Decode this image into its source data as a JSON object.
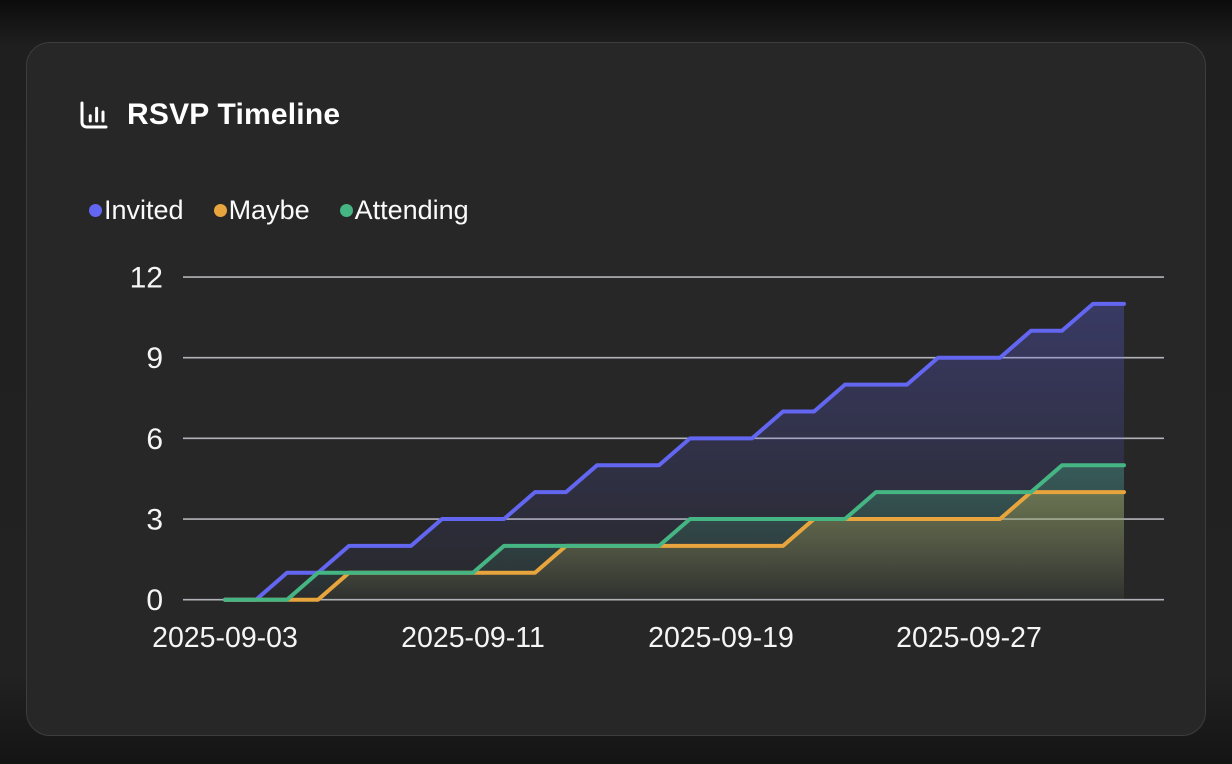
{
  "card": {
    "title": "RSVP Timeline",
    "title_icon": "bar-chart"
  },
  "chart_data": {
    "type": "line",
    "variant": "cumulative-daily-step-area",
    "title": "RSVP Timeline",
    "x": [
      "2025-09-03",
      "2025-09-04",
      "2025-09-05",
      "2025-09-06",
      "2025-09-07",
      "2025-09-08",
      "2025-09-09",
      "2025-09-10",
      "2025-09-11",
      "2025-09-12",
      "2025-09-13",
      "2025-09-14",
      "2025-09-15",
      "2025-09-16",
      "2025-09-17",
      "2025-09-18",
      "2025-09-19",
      "2025-09-20",
      "2025-09-21",
      "2025-09-22",
      "2025-09-23",
      "2025-09-24",
      "2025-09-25",
      "2025-09-26",
      "2025-09-27",
      "2025-09-28",
      "2025-09-29",
      "2025-09-30",
      "2025-10-01",
      "2025-10-02"
    ],
    "series": [
      {
        "name": "Invited",
        "color": "#6366f1",
        "values": [
          0,
          0,
          1,
          1,
          2,
          2,
          2,
          3,
          3,
          3,
          4,
          4,
          5,
          5,
          5,
          6,
          6,
          6,
          7,
          7,
          8,
          8,
          8,
          9,
          9,
          9,
          10,
          10,
          11,
          11
        ]
      },
      {
        "name": "Maybe",
        "color": "#e8a53d",
        "values": [
          0,
          0,
          0,
          0,
          1,
          1,
          1,
          1,
          1,
          1,
          1,
          2,
          2,
          2,
          2,
          2,
          2,
          2,
          2,
          3,
          3,
          3,
          3,
          3,
          3,
          3,
          4,
          4,
          4,
          4
        ]
      },
      {
        "name": "Attending",
        "color": "#45b683",
        "values": [
          0,
          0,
          0,
          1,
          1,
          1,
          1,
          1,
          1,
          2,
          2,
          2,
          2,
          2,
          2,
          3,
          3,
          3,
          3,
          3,
          3,
          4,
          4,
          4,
          4,
          4,
          4,
          5,
          5,
          5
        ]
      }
    ],
    "xlabel": "",
    "ylabel": "",
    "ylim": [
      0,
      12
    ],
    "yticks": [
      0,
      3,
      6,
      9,
      12
    ],
    "ytick_labels": [
      "0",
      "3",
      "6",
      "9",
      "12"
    ],
    "xticks": {
      "indices": [
        0,
        8,
        16,
        24
      ],
      "labels": [
        "2025-09-03",
        "2025-09-11",
        "2025-09-19",
        "2025-09-27"
      ]
    },
    "grid": "horizontal",
    "legend_position": "top-left",
    "grid_color": "#c6c7ce",
    "text_color": "#f5f5f6",
    "background_color": "#272727"
  }
}
